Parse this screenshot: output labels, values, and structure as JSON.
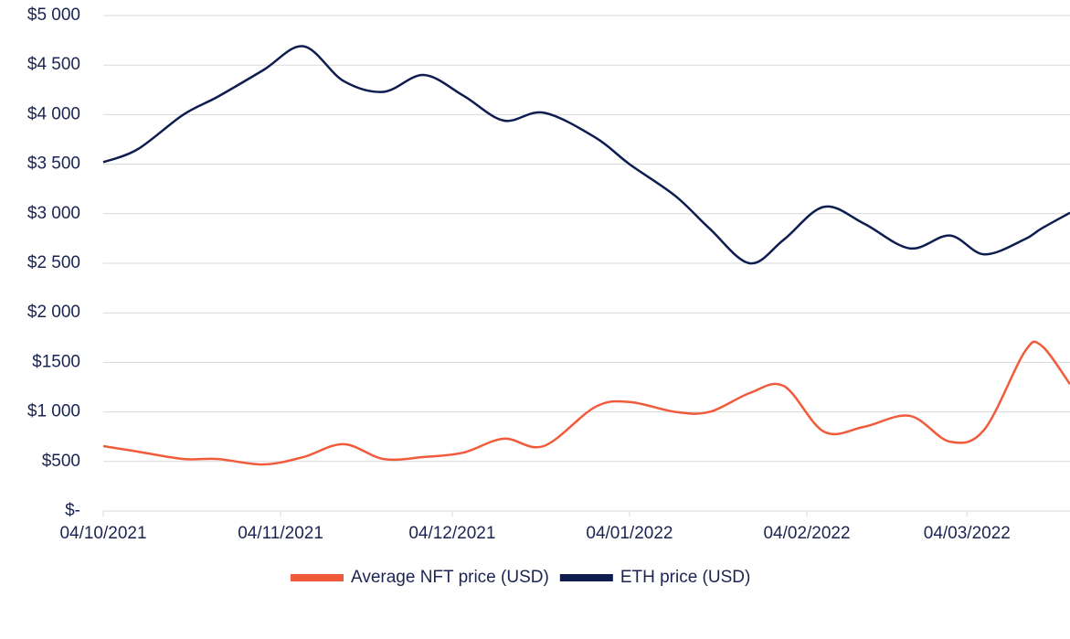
{
  "chart_data": {
    "type": "line",
    "x": [
      "2021-10-04",
      "2021-10-10",
      "2021-10-18",
      "2021-10-24",
      "2021-11-01",
      "2021-11-08",
      "2021-11-15",
      "2021-11-22",
      "2021-11-29",
      "2021-12-06",
      "2021-12-13",
      "2021-12-20",
      "2021-12-29",
      "2022-01-04",
      "2022-01-12",
      "2022-01-18",
      "2022-01-25",
      "2022-01-31",
      "2022-02-07",
      "2022-02-14",
      "2022-02-22",
      "2022-03-01",
      "2022-03-07",
      "2022-03-14",
      "2022-03-17",
      "2022-03-22"
    ],
    "series": [
      {
        "name": "Average NFT price (USD)",
        "color": "#f15a3a",
        "values": [
          655,
          600,
          525,
          525,
          470,
          545,
          675,
          525,
          545,
          590,
          730,
          655,
          1050,
          1100,
          1000,
          1000,
          1190,
          1260,
          800,
          850,
          960,
          700,
          820,
          1600,
          1670,
          1280
        ]
      },
      {
        "name": "ETH price (USD)",
        "color": "#0e1d4f",
        "values": [
          3520,
          3650,
          4000,
          4180,
          4450,
          4690,
          4340,
          4230,
          4400,
          4190,
          3940,
          4020,
          3770,
          3500,
          3180,
          2850,
          2500,
          2740,
          3070,
          2900,
          2650,
          2780,
          2590,
          2740,
          2850,
          3010
        ]
      }
    ],
    "xlim": [
      "2021-10-04",
      "2022-03-22"
    ],
    "xticks": [
      {
        "value": "2021-10-04",
        "label": "04/10/2021"
      },
      {
        "value": "2021-11-04",
        "label": "04/11/2021"
      },
      {
        "value": "2021-12-04",
        "label": "04/12/2021"
      },
      {
        "value": "2022-01-04",
        "label": "04/01/2022"
      },
      {
        "value": "2022-02-04",
        "label": "04/02/2022"
      },
      {
        "value": "2022-03-04",
        "label": "04/03/2022"
      }
    ],
    "ylim": [
      0,
      5000
    ],
    "yticks": [
      {
        "value": 0,
        "label": "$-"
      },
      {
        "value": 500,
        "label": "$500"
      },
      {
        "value": 1000,
        "label": "$1 000"
      },
      {
        "value": 1500,
        "label": "$1500"
      },
      {
        "value": 2000,
        "label": "$2 000"
      },
      {
        "value": 2500,
        "label": "$2 500"
      },
      {
        "value": 3000,
        "label": "$3 000"
      },
      {
        "value": 3500,
        "label": "$3 500"
      },
      {
        "value": 4000,
        "label": "$4 000"
      },
      {
        "value": 4500,
        "label": "$4 500"
      },
      {
        "value": 5000,
        "label": "$5 000"
      }
    ],
    "grid": true,
    "legend": "bottom"
  }
}
